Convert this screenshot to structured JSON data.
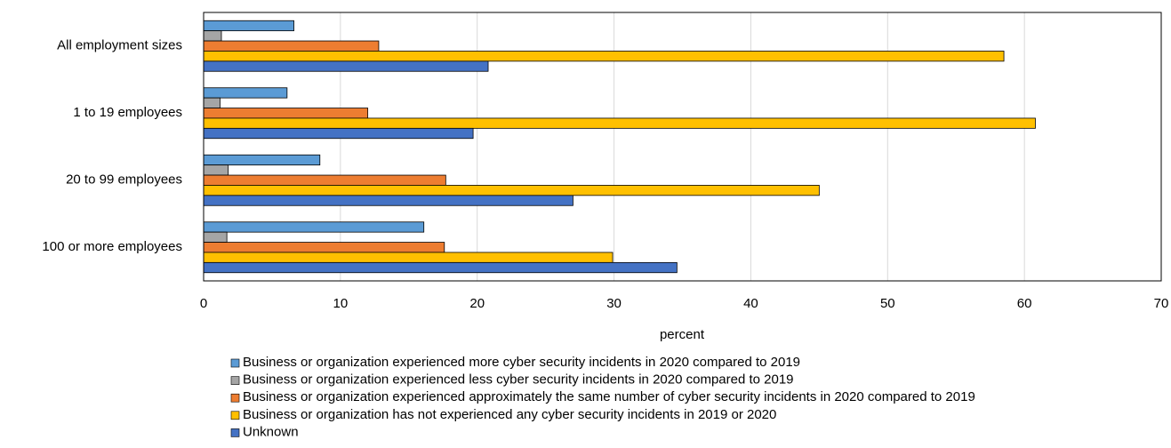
{
  "chart_data": {
    "type": "hbar",
    "categories": [
      "All employment sizes",
      "1 to 19 employees",
      "20 to 99 employees",
      "100 or more employees"
    ],
    "series": [
      {
        "name": "Business or organization experienced more cyber security incidents in 2020 compared to 2019",
        "color": "#5b9bd5",
        "values": [
          6.6,
          6.1,
          8.5,
          16.1
        ]
      },
      {
        "name": "Business or organization experienced less cyber security incidents in 2020 compared to 2019",
        "color": "#a5a5a5",
        "values": [
          1.3,
          1.2,
          1.8,
          1.7
        ]
      },
      {
        "name": "Business or organization experienced approximately the same number of cyber security incidents in 2020 compared to 2019",
        "color": "#ed7d31",
        "values": [
          12.8,
          12.0,
          17.7,
          17.6
        ]
      },
      {
        "name": "Business or organization has not experienced any cyber security incidents in 2019 or 2020",
        "color": "#ffc000",
        "values": [
          58.5,
          60.8,
          45.0,
          29.9
        ]
      },
      {
        "name": "Unknown",
        "color": "#4472c4",
        "values": [
          20.8,
          19.7,
          27.0,
          34.6
        ]
      }
    ],
    "x_label": "percent",
    "xlim": [
      0,
      70
    ],
    "xticks": [
      0,
      10,
      20,
      30,
      40,
      50,
      60,
      70
    ],
    "grid": true
  }
}
